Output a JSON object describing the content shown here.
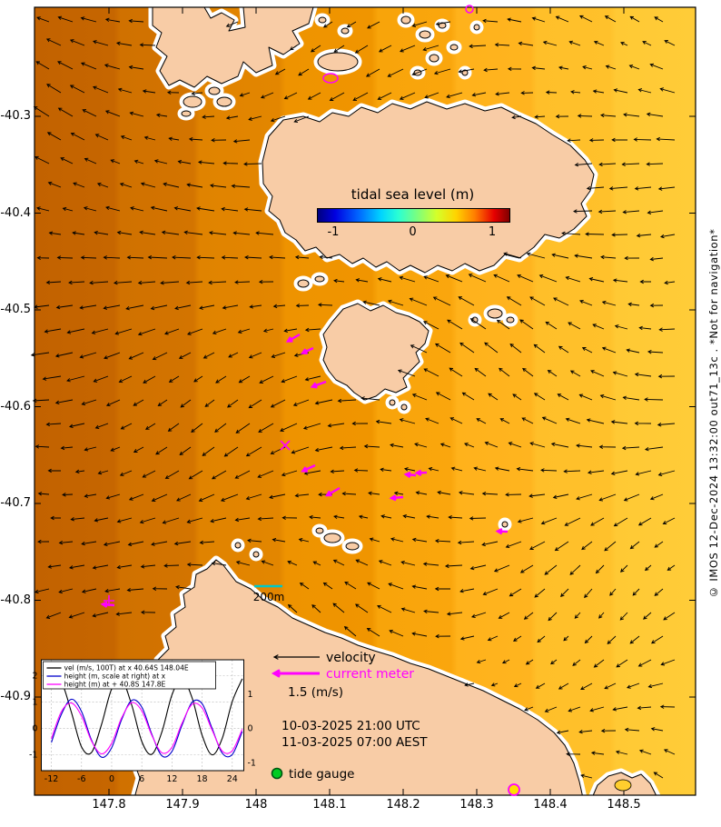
{
  "figure": {
    "colorbar": {
      "title": "tidal sea level (m)",
      "ticks": [
        "-1",
        "0",
        "1"
      ]
    },
    "axes": {
      "lat_ticks": [
        "-40.3",
        "-40.4",
        "-40.5",
        "-40.6",
        "-40.7",
        "-40.8",
        "-40.9"
      ],
      "lon_ticks": [
        "147.8",
        "147.9",
        "148",
        "148.1",
        "148.2",
        "148.3",
        "148.4",
        "148.5"
      ]
    },
    "scale_bar": {
      "label": "200m"
    },
    "legend": {
      "velocity": "velocity",
      "current_meter": "current meter",
      "speed_scale": "1.5 (m/s)",
      "tide_gauge": "tide gauge"
    },
    "timestamp_utc": "10-03-2025 21:00 UTC",
    "timestamp_aest": "11-03-2025 07:00 AEST",
    "credit": "© IMOS 12-Dec-2024 13:32:00 out71_13c . *Not for navigation*",
    "map_markers": {
      "station_x": "x",
      "station_plus": "+"
    },
    "colors": {
      "velocity_arrows": "#000000",
      "current_meter": "#ff00ff",
      "tide_gauge": "#00cc22",
      "land": "#f8cca6",
      "ocean_left": "#c26200",
      "ocean_right": "#ffcc38",
      "scale_bar": "#00c8c8"
    }
  },
  "chart_data": {
    "type": "line",
    "x": [
      -12,
      -10,
      -8,
      -6,
      -4,
      -2,
      0,
      2,
      4,
      6,
      8,
      10,
      12,
      14,
      16,
      18,
      20,
      22,
      24,
      26
    ],
    "series": [
      {
        "name": "vel (m/s, 100T) at x 40.64S 148.04E",
        "color": "#000000",
        "axis": "left",
        "values": [
          1.68,
          1.75,
          0.6,
          -0.7,
          -0.91,
          0.16,
          1.5,
          1.85,
          0.88,
          -0.5,
          -0.98,
          -0.13,
          1.27,
          1.9,
          1.16,
          -0.26,
          -1.0,
          -0.38,
          1.02,
          1.88
        ]
      },
      {
        "name": "height (m, scale at right) at x",
        "color": "#0000cc",
        "axis": "right",
        "values": [
          -0.41,
          0.41,
          0.85,
          0.49,
          -0.34,
          -0.84,
          -0.56,
          0.26,
          0.82,
          0.62,
          -0.17,
          -0.8,
          -0.67,
          0.09,
          0.76,
          0.72,
          0.0,
          -0.72,
          -0.76,
          -0.09
        ]
      },
      {
        "name": "height (m) at + 40.8S 147.8E",
        "color": "#ff00ff",
        "axis": "right",
        "values": [
          -0.3,
          0.49,
          0.74,
          0.36,
          -0.37,
          -0.74,
          -0.43,
          0.31,
          0.75,
          0.51,
          -0.2,
          -0.71,
          -0.55,
          0.15,
          0.7,
          0.6,
          -0.05,
          -0.66,
          -0.65,
          -0.02
        ]
      }
    ],
    "x_ticks": [
      -12,
      -6,
      0,
      6,
      12,
      18,
      24
    ],
    "y_left_ticks": [
      2,
      1,
      0,
      -1
    ],
    "y_right_ticks": [
      1,
      0,
      -1
    ],
    "x_range": [
      -14,
      26.3
    ],
    "y_left_range": [
      -1.6,
      2.6
    ],
    "grid": true,
    "legend_position": "top-left"
  }
}
